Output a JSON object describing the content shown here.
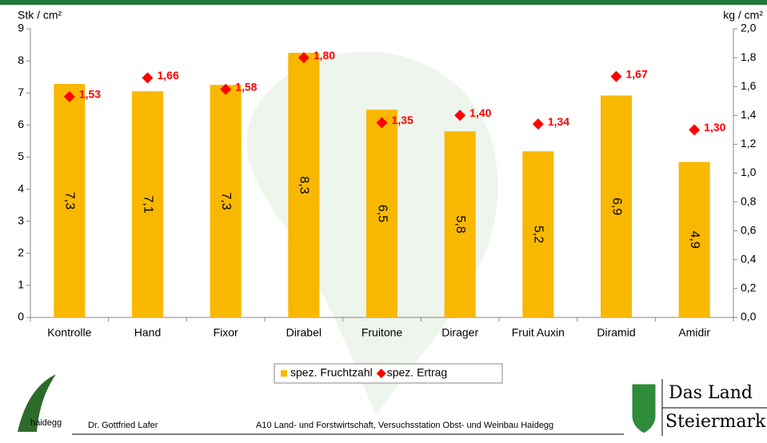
{
  "chart_data": {
    "type": "bar",
    "y_label": "Stk / cm²",
    "y2_label": "kg / cm²",
    "categories": [
      "Kontrolle",
      "Hand",
      "Fixor",
      "Dirabel",
      "Fruitone",
      "Dirager",
      "Fruit Auxin",
      "Diramid",
      "Amidir"
    ],
    "series": [
      {
        "name": "spez. Fruchtzahl",
        "color": "#f9b800",
        "values": [
          7.28,
          7.05,
          7.25,
          8.25,
          6.48,
          5.8,
          5.18,
          6.92,
          4.85
        ],
        "value_labels": [
          "7,3",
          "7,1",
          "7,3",
          "8,3",
          "6,5",
          "5,8",
          "5,2",
          "6,9",
          "4,9"
        ]
      },
      {
        "name": "spez. Ertrag",
        "color": "#ff0000",
        "axis": "y2",
        "values": [
          1.53,
          1.66,
          1.58,
          1.8,
          1.35,
          1.4,
          1.34,
          1.67,
          1.3
        ],
        "value_labels": [
          "1,53",
          "1,66",
          "1,58",
          "1,80",
          "1,35",
          "1,40",
          "1,34",
          "1,67",
          "1,30"
        ]
      }
    ],
    "ylim": [
      0,
      9
    ],
    "yticks": [
      0,
      1,
      2,
      3,
      4,
      5,
      6,
      7,
      8,
      9
    ],
    "y2lim": [
      0,
      2
    ],
    "y2ticks": [
      {
        "value": 0,
        "label": "0,0"
      },
      {
        "value": 0.2,
        "label": "0,2"
      },
      {
        "value": 0.4,
        "label": "0,4"
      },
      {
        "value": 0.6,
        "label": "0,6"
      },
      {
        "value": 0.8,
        "label": "0,8"
      },
      {
        "value": 1,
        "label": "1,0"
      },
      {
        "value": 1.2,
        "label": "1,2"
      },
      {
        "value": 1.4,
        "label": "1,4"
      },
      {
        "value": 1.6,
        "label": "1,6"
      },
      {
        "value": 1.8,
        "label": "1,8"
      },
      {
        "value": 2,
        "label": "2,0"
      }
    ],
    "grid": false,
    "legend": "bottom"
  },
  "footer": {
    "logo_text": "haidegg",
    "author": "Dr. Gottfried Lafer",
    "institution": "A10 Land- und Forstwirtschaft, Versuchsstation Obst- und Weinbau Haidegg",
    "brand_line1": "Das Land",
    "brand_line2": "Steiermark"
  }
}
